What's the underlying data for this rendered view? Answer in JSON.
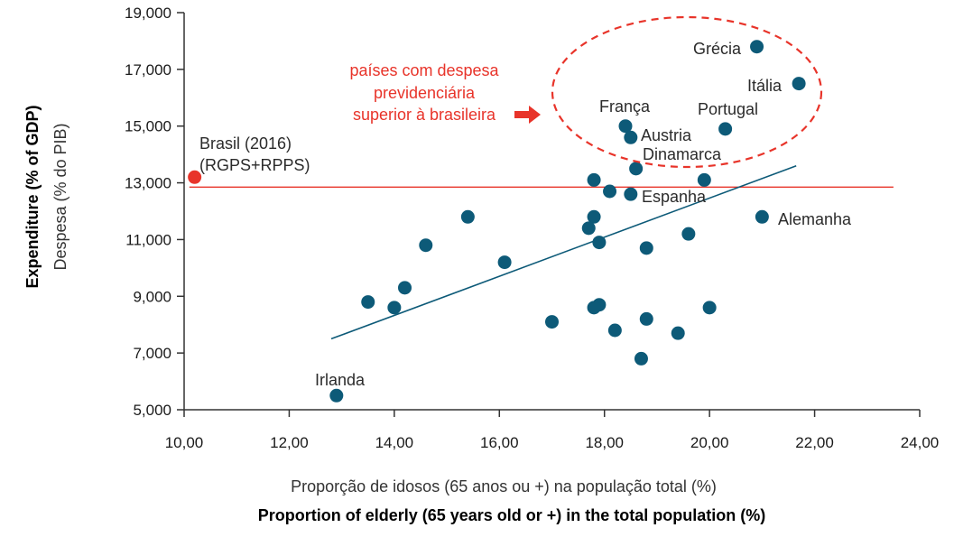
{
  "chart_data": {
    "type": "scatter",
    "xlabel_pt": "Proporção de idosos (65 anos ou +) na população total (%)",
    "xlabel_en": "Proportion of elderly (65 years old or +) in the total population (%)",
    "ylabel_en": "Expenditure (% of GDP)",
    "ylabel_pt": "Despesa (% do PIB)",
    "xlim": [
      10,
      24
    ],
    "ylim": [
      5000,
      19000
    ],
    "x_ticks": [
      "10,00",
      "12,00",
      "14,00",
      "16,00",
      "18,00",
      "20,00",
      "22,00",
      "24,00"
    ],
    "y_ticks": [
      "5,000",
      "7,000",
      "9,000",
      "11,000",
      "13,000",
      "15,000",
      "17,000",
      "19,000"
    ],
    "x_tick_values": [
      10,
      12,
      14,
      16,
      18,
      20,
      22,
      24
    ],
    "y_tick_values": [
      5000,
      7000,
      9000,
      11000,
      13000,
      15000,
      17000,
      19000
    ],
    "points": [
      {
        "x": 20.9,
        "y": 17800,
        "label": "Grécia"
      },
      {
        "x": 21.7,
        "y": 16500,
        "label": "Itália"
      },
      {
        "x": 18.4,
        "y": 15000,
        "label": "França"
      },
      {
        "x": 18.5,
        "y": 14600,
        "label": "Austria"
      },
      {
        "x": 20.3,
        "y": 14900,
        "label": "Portugal"
      },
      {
        "x": 18.6,
        "y": 13500,
        "label": "Dinamarca"
      },
      {
        "x": 18.5,
        "y": 12600,
        "label": "Espanha"
      },
      {
        "x": 21.0,
        "y": 11800,
        "label": "Alemanha"
      },
      {
        "x": 12.9,
        "y": 5500,
        "label": "Irlanda"
      },
      {
        "x": 17.8,
        "y": 13100
      },
      {
        "x": 18.1,
        "y": 12700
      },
      {
        "x": 19.9,
        "y": 13100
      },
      {
        "x": 15.4,
        "y": 11800
      },
      {
        "x": 17.8,
        "y": 11800
      },
      {
        "x": 17.7,
        "y": 11400
      },
      {
        "x": 17.9,
        "y": 10900
      },
      {
        "x": 14.6,
        "y": 10800
      },
      {
        "x": 18.8,
        "y": 10700
      },
      {
        "x": 19.6,
        "y": 11200
      },
      {
        "x": 16.1,
        "y": 10200
      },
      {
        "x": 14.2,
        "y": 9300
      },
      {
        "x": 13.5,
        "y": 8800
      },
      {
        "x": 14.0,
        "y": 8600
      },
      {
        "x": 17.9,
        "y": 8700
      },
      {
        "x": 17.8,
        "y": 8600
      },
      {
        "x": 17.0,
        "y": 8100
      },
      {
        "x": 18.8,
        "y": 8200
      },
      {
        "x": 20.0,
        "y": 8600
      },
      {
        "x": 18.2,
        "y": 7800
      },
      {
        "x": 19.4,
        "y": 7700
      },
      {
        "x": 18.7,
        "y": 6800
      }
    ],
    "brasil_point": {
      "x": 10.2,
      "y": 13200,
      "label_line1": "Brasil (2016)",
      "label_line2": "(RGPS+RPPS)"
    },
    "brasil_reference_line": {
      "y": 12850,
      "x_start": 10.1,
      "x_end": 23.5
    },
    "trend_line": {
      "x1": 12.8,
      "y1": 7500,
      "x2": 21.65,
      "y2": 13600
    },
    "annotation": {
      "lines": [
        "países com despesa",
        "previdenciária",
        "superior à brasileira"
      ]
    },
    "colors": {
      "points": "#0d5a78",
      "brasil": "#e8342a",
      "trend": "#0d5a78",
      "reference_line": "#e8342a",
      "annotation": "#e8342a",
      "axis": "#333333"
    }
  }
}
